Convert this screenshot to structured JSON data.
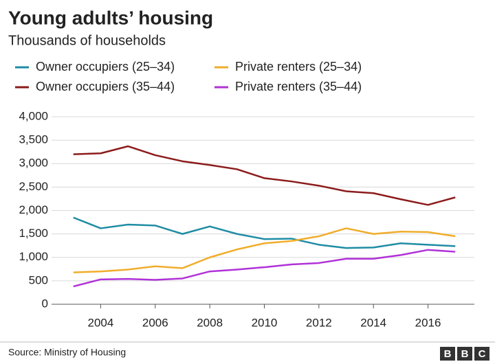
{
  "chart_data": {
    "type": "line",
    "title": "Young adults’ housing",
    "subtitle": "Thousands of households",
    "x": [
      2003,
      2004,
      2005,
      2006,
      2007,
      2008,
      2009,
      2010,
      2011,
      2012,
      2013,
      2014,
      2015,
      2016,
      2017
    ],
    "series": [
      {
        "name": "Owner occupiers (25–34)",
        "color": "#1f8ca4",
        "values": [
          1850,
          1620,
          1700,
          1680,
          1500,
          1660,
          1500,
          1390,
          1400,
          1270,
          1200,
          1210,
          1300,
          1270,
          1240
        ]
      },
      {
        "name": "Owner occupiers (35–44)",
        "color": "#8c1b1b",
        "values": [
          3200,
          3220,
          3370,
          3180,
          3050,
          2970,
          2880,
          2690,
          2620,
          2530,
          2410,
          2370,
          2240,
          2120,
          2280
        ]
      },
      {
        "name": "Private renters (25–34)",
        "color": "#f0ad2a",
        "values": [
          680,
          700,
          740,
          810,
          770,
          1000,
          1170,
          1300,
          1350,
          1450,
          1620,
          1500,
          1550,
          1540,
          1450
        ]
      },
      {
        "name": "Private renters (35–44)",
        "color": "#b032d8",
        "values": [
          380,
          530,
          540,
          520,
          550,
          700,
          740,
          790,
          850,
          880,
          970,
          970,
          1050,
          1160,
          1120
        ]
      }
    ],
    "xlim": [
      2002.2,
      2017.7
    ],
    "xticks": [
      2004,
      2006,
      2008,
      2010,
      2012,
      2014,
      2016
    ],
    "ylim": [
      0,
      4000
    ],
    "yticks": [
      0,
      500,
      {
        "value": 1000,
        "label": "1,000"
      },
      {
        "value": 1500,
        "label": "1,500"
      },
      {
        "value": 2000,
        "label": "2,000"
      },
      {
        "value": 2500,
        "label": "2,500"
      },
      {
        "value": 3000,
        "label": "3,000"
      },
      {
        "value": 3500,
        "label": "3,500"
      },
      {
        "value": 4000,
        "label": "4,000"
      }
    ],
    "grid": true,
    "source": "Source: Ministry of Housing",
    "logo": [
      "B",
      "B",
      "C"
    ]
  }
}
